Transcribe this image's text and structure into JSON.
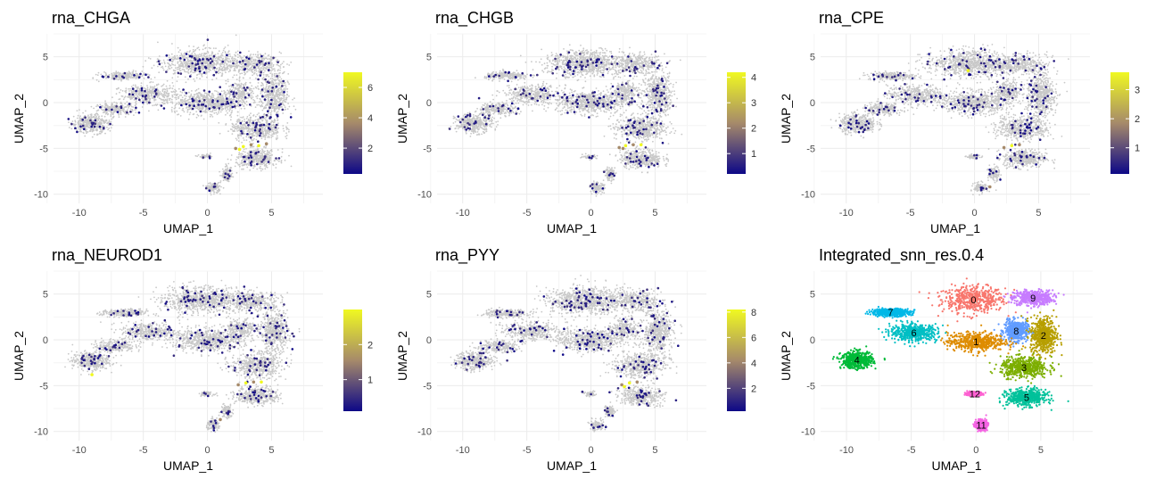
{
  "chart_data": [
    {
      "type": "scatter",
      "title": "rna_CHGA",
      "xlabel": "UMAP_1",
      "ylabel": "UMAP_2",
      "xlim": [
        -12,
        9
      ],
      "ylim": [
        -11,
        7.5
      ],
      "xticks": [
        -10,
        -5,
        0,
        5
      ],
      "yticks": [
        -10,
        -5,
        0,
        5
      ],
      "legend": {
        "type": "colorbar",
        "min": 0.3,
        "max": 7,
        "ticks": [
          2,
          4,
          6
        ]
      },
      "colors": {
        "low": "#0d0887",
        "mid": "#a68a6a",
        "high": "#f0f921",
        "background": "#c8c8c8"
      },
      "highlights": [
        [
          2.2,
          -5.0
        ],
        [
          2.8,
          -4.8
        ],
        [
          3.4,
          -4.6
        ],
        [
          4.0,
          -4.7
        ],
        [
          4.6,
          -4.5
        ],
        [
          2.5,
          -5.1
        ]
      ]
    },
    {
      "type": "scatter",
      "title": "rna_CHGB",
      "xlabel": "UMAP_1",
      "ylabel": "UMAP_2",
      "xlim": [
        -12,
        9
      ],
      "ylim": [
        -11,
        7.5
      ],
      "xticks": [
        -10,
        -5,
        0,
        5
      ],
      "yticks": [
        -10,
        -5,
        0,
        5
      ],
      "legend": {
        "type": "colorbar",
        "min": 0.2,
        "max": 4.2,
        "ticks": [
          1,
          2,
          3,
          4
        ]
      },
      "colors": {
        "low": "#0d0887",
        "mid": "#a68a6a",
        "high": "#f0f921",
        "background": "#c8c8c8"
      },
      "highlights": [
        [
          2.2,
          -4.9
        ],
        [
          2.7,
          -4.7
        ],
        [
          3.3,
          -4.6
        ],
        [
          3.9,
          -4.6
        ],
        [
          2.5,
          -5.0
        ]
      ]
    },
    {
      "type": "scatter",
      "title": "rna_CPE",
      "xlabel": "UMAP_1",
      "ylabel": "UMAP_2",
      "xlim": [
        -12,
        9
      ],
      "ylim": [
        -11,
        7.5
      ],
      "xticks": [
        -10,
        -5,
        0,
        5
      ],
      "yticks": [
        -10,
        -5,
        0,
        5
      ],
      "legend": {
        "type": "colorbar",
        "min": 0.1,
        "max": 3.6,
        "ticks": [
          1,
          2,
          3
        ]
      },
      "colors": {
        "low": "#0d0887",
        "mid": "#a68a6a",
        "high": "#f0f921",
        "background": "#c8c8c8"
      },
      "highlights": [
        [
          2.3,
          -4.9
        ],
        [
          2.9,
          -4.7
        ],
        [
          3.5,
          -4.6
        ],
        [
          -0.5,
          3.5
        ],
        [
          1.2,
          -9.2
        ]
      ]
    },
    {
      "type": "scatter",
      "title": "rna_NEUROD1",
      "xlabel": "UMAP_1",
      "ylabel": "UMAP_2",
      "xlim": [
        -12,
        9
      ],
      "ylim": [
        -11,
        7.5
      ],
      "xticks": [
        -10,
        -5,
        0,
        5
      ],
      "yticks": [
        -10,
        -5,
        0,
        5
      ],
      "legend": {
        "type": "colorbar",
        "min": 0.1,
        "max": 3,
        "ticks": [
          1,
          2
        ]
      },
      "colors": {
        "low": "#0d0887",
        "mid": "#a68a6a",
        "high": "#f0f921",
        "background": "#c8c8c8"
      },
      "highlights": [
        [
          2.4,
          -4.9
        ],
        [
          3.0,
          -4.7
        ],
        [
          3.6,
          -4.6
        ],
        [
          4.2,
          -4.6
        ],
        [
          1.0,
          -8.7
        ],
        [
          -9.0,
          -3.8
        ]
      ]
    },
    {
      "type": "scatter",
      "title": "rna_PYY",
      "xlabel": "UMAP_1",
      "ylabel": "UMAP_2",
      "xlim": [
        -12,
        9
      ],
      "ylim": [
        -11,
        7.5
      ],
      "xticks": [
        -10,
        -5,
        0,
        5
      ],
      "yticks": [
        -10,
        -5,
        0,
        5
      ],
      "legend": {
        "type": "colorbar",
        "min": 0.2,
        "max": 8.2,
        "ticks": [
          2,
          4,
          6,
          8
        ]
      },
      "colors": {
        "low": "#0d0887",
        "mid": "#a68a6a",
        "high": "#f0f921",
        "background": "#c8c8c8"
      },
      "highlights": [
        [
          2.4,
          -4.9
        ],
        [
          3.0,
          -4.7
        ],
        [
          3.6,
          -4.6
        ],
        [
          2.6,
          -5.1
        ]
      ]
    },
    {
      "type": "scatter",
      "title": "Integrated_snn_res.0.4",
      "xlabel": "UMAP_1",
      "ylabel": "UMAP_2",
      "xlim": [
        -12,
        9
      ],
      "ylim": [
        -11,
        7.5
      ],
      "xticks": [
        -10,
        -5,
        0,
        5
      ],
      "yticks": [
        -10,
        -5,
        0,
        5
      ],
      "clusters": [
        {
          "label": "0",
          "color": "#f8766d",
          "center": [
            -0.2,
            4.4
          ],
          "spread": [
            2.4,
            1.4
          ]
        },
        {
          "label": "9",
          "color": "#c77cff",
          "center": [
            4.4,
            4.6
          ],
          "spread": [
            1.5,
            0.8
          ]
        },
        {
          "label": "8",
          "color": "#619cff",
          "center": [
            3.1,
            1.0
          ],
          "spread": [
            0.9,
            1.1
          ]
        },
        {
          "label": "2",
          "color": "#b79f00",
          "center": [
            5.2,
            0.5
          ],
          "spread": [
            1.0,
            2.0
          ]
        },
        {
          "label": "1",
          "color": "#de8c00",
          "center": [
            0.0,
            -0.2
          ],
          "spread": [
            2.2,
            1.0
          ]
        },
        {
          "label": "3",
          "color": "#7cae00",
          "center": [
            3.7,
            -3.0
          ],
          "spread": [
            1.8,
            1.1
          ]
        },
        {
          "label": "5",
          "color": "#00c19a",
          "center": [
            3.9,
            -6.3
          ],
          "spread": [
            1.5,
            0.9
          ]
        },
        {
          "label": "7",
          "color": "#00b8e7",
          "center": [
            -6.6,
            3.0
          ],
          "spread": [
            1.5,
            0.4
          ]
        },
        {
          "label": "6",
          "color": "#00bfc4",
          "center": [
            -4.8,
            0.8
          ],
          "spread": [
            1.8,
            0.9
          ]
        },
        {
          "label": "4",
          "color": "#00ba38",
          "center": [
            -9.2,
            -2.2
          ],
          "spread": [
            1.2,
            0.9
          ]
        },
        {
          "label": "12",
          "color": "#fd61d1",
          "center": [
            -0.1,
            -5.9
          ],
          "spread": [
            0.5,
            0.2
          ]
        },
        {
          "label": "11",
          "color": "#f564e3",
          "center": [
            0.4,
            -9.3
          ],
          "spread": [
            0.4,
            0.5
          ]
        }
      ]
    }
  ]
}
